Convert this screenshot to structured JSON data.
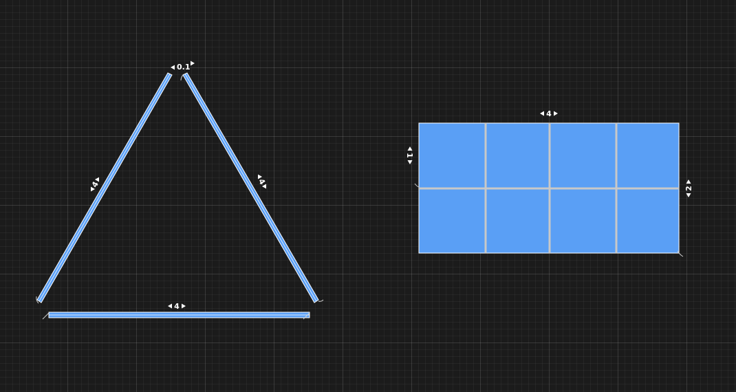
{
  "canvas": {
    "background": "#1b1b1b",
    "grid_color": "#ffffff"
  },
  "colors": {
    "piece_fill": "#5a9ff5",
    "piece_outline": "#ffffff",
    "divider": "#c8c8c8"
  },
  "triangle": {
    "left_side_label": "4",
    "right_side_label": "4",
    "bottom_side_label": "4",
    "gap_label": "0.1"
  },
  "grid_panel": {
    "width_label": "4",
    "row_height_label": "1",
    "height_label": "2",
    "columns": 4,
    "rows": 2
  }
}
